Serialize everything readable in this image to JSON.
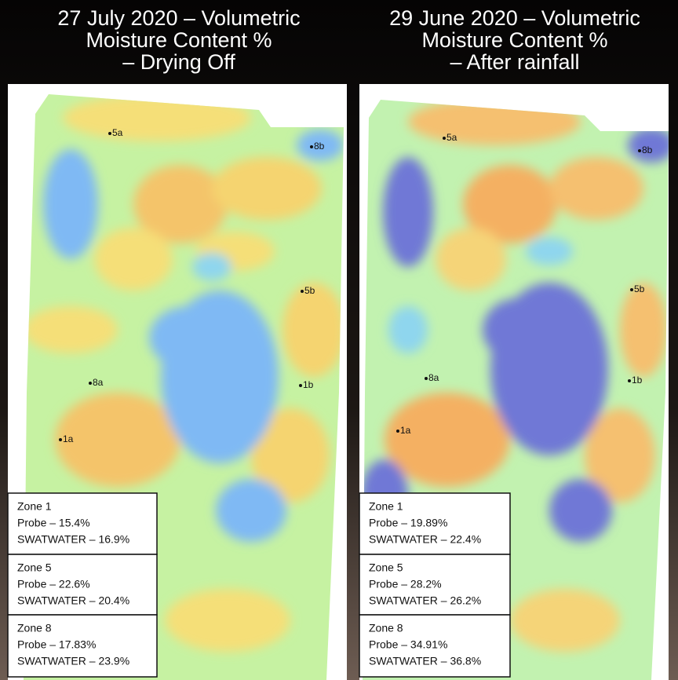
{
  "panels": [
    {
      "title": [
        "27 July 2020 – Volumetric",
        "Moisture Content %",
        "– Drying Off"
      ],
      "probes": [
        "5a",
        "8b",
        "5b",
        "8a",
        "1b",
        "1a"
      ],
      "zones": [
        {
          "name": "Zone 1",
          "probe": "Probe – 15.4%",
          "swatwater": "SWATWATER – 16.9%"
        },
        {
          "name": "Zone 5",
          "probe": "Probe – 22.6%",
          "swatwater": "SWATWATER – 20.4%"
        },
        {
          "name": "Zone 8",
          "probe": "Probe – 17.83%",
          "swatwater": "SWATWATER – 23.9%"
        }
      ]
    },
    {
      "title": [
        "29 June 2020 – Volumetric",
        "Moisture Content %",
        "– After rainfall"
      ],
      "probes": [
        "5a",
        "8b",
        "5b",
        "8a",
        "1b",
        "1a"
      ],
      "zones": [
        {
          "name": "Zone 1",
          "probe": "Probe – 19.89%",
          "swatwater": "SWATWATER – 22.4%"
        },
        {
          "name": "Zone 5",
          "probe": "Probe – 28.2%",
          "swatwater": "SWATWATER – 26.2%"
        },
        {
          "name": "Zone 8",
          "probe": "Probe – 34.91%",
          "swatwater": "SWATWATER – 36.8%"
        }
      ]
    }
  ]
}
